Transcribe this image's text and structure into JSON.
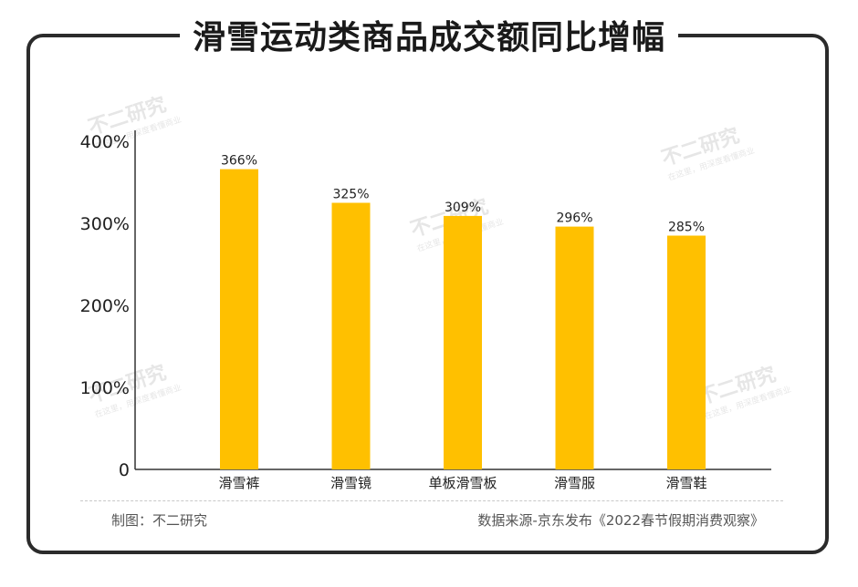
{
  "title": "滑雪运动类商品成交额同比增幅",
  "watermark": {
    "main": "不二研究",
    "sub": "在这里，用深度看懂商业"
  },
  "footer": {
    "left": "制图：不二研究",
    "right": "数据来源-京东发布《2022春节假期消费观察》"
  },
  "colors": {
    "bar": "#FFC000",
    "frame": "#2b2b2b",
    "axis": "#333333"
  },
  "chart_data": {
    "type": "bar",
    "title": "滑雪运动类商品成交额同比增幅",
    "xlabel": "",
    "ylabel": "",
    "categories": [
      "滑雪裤",
      "滑雪镜",
      "单板滑雪板",
      "滑雪服",
      "滑雪鞋"
    ],
    "values": [
      366,
      325,
      309,
      296,
      285
    ],
    "data_labels": [
      "366%",
      "325%",
      "309%",
      "296%",
      "285%"
    ],
    "y_ticks": [
      0,
      100,
      200,
      300,
      400
    ],
    "y_tick_labels": [
      "0",
      "100%",
      "200%",
      "300%",
      "400%"
    ],
    "ylim": [
      0,
      400
    ],
    "grid": false,
    "legend": "none"
  }
}
